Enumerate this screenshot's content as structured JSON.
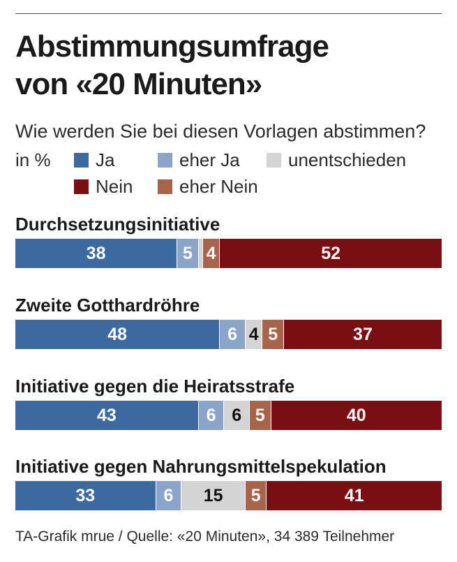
{
  "title_line1": "Abstimmungsumfrage",
  "title_line2": "von «20 Minuten»",
  "subtitle": "Wie werden Sie bei diesen Vorlagen abstimmen?",
  "unit": "in %",
  "footer": "TA-Grafik mrue / Quelle: «20 Minuten», 34 389 Teilnehmer",
  "colors": {
    "ja": "#3d6a9e",
    "eher_ja": "#8aa5c8",
    "unentschieden": "#d4d4d4",
    "eher_nein": "#a8644a",
    "nein": "#7a0f12"
  },
  "legend": [
    {
      "key": "ja",
      "label": "Ja"
    },
    {
      "key": "eher_ja",
      "label": "eher Ja"
    },
    {
      "key": "unentschieden",
      "label": "unentschieden"
    },
    {
      "key": "nein",
      "label": "Nein"
    },
    {
      "key": "eher_nein",
      "label": "eher Nein"
    }
  ],
  "chart_data": {
    "type": "bar",
    "orientation": "horizontal-stacked",
    "unit": "%",
    "categories": [
      "Durchsetzungsinitiative",
      "Zweite Gotthardröhre",
      "Initiative gegen die Heiratsstrafe",
      "Initiative gegen Nahrungsmittelspekulation"
    ],
    "series": [
      {
        "key": "ja",
        "name": "Ja",
        "values": [
          38,
          48,
          43,
          33
        ]
      },
      {
        "key": "eher_ja",
        "name": "eher Ja",
        "values": [
          5,
          6,
          6,
          6
        ]
      },
      {
        "key": "unentschieden",
        "name": "unentschieden",
        "values": [
          1,
          4,
          6,
          15
        ]
      },
      {
        "key": "eher_nein",
        "name": "eher Nein",
        "values": [
          4,
          5,
          5,
          5
        ]
      },
      {
        "key": "nein",
        "name": "Nein",
        "values": [
          52,
          37,
          40,
          41
        ]
      }
    ],
    "labels_shown": [
      [
        "38",
        "5",
        "",
        "4",
        "52"
      ],
      [
        "48",
        "6",
        "4",
        "5",
        "37"
      ],
      [
        "43",
        "6",
        "6",
        "5",
        "40"
      ],
      [
        "33",
        "6",
        "15",
        "5",
        "41"
      ]
    ]
  }
}
